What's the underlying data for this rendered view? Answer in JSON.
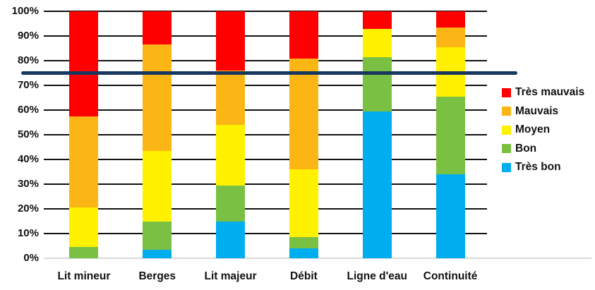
{
  "chart_data": {
    "type": "bar",
    "subtype": "stacked-100-percent-column",
    "title": "",
    "xlabel": "",
    "ylabel": "",
    "ylim": [
      0,
      100
    ],
    "grid": true,
    "y_ticks": [
      "0%",
      "10%",
      "20%",
      "30%",
      "40%",
      "50%",
      "60%",
      "70%",
      "80%",
      "90%",
      "100%"
    ],
    "categories": [
      "Lit mineur",
      "Berges",
      "Lit majeur",
      "Débit",
      "Ligne d'eau",
      "Continuité"
    ],
    "series": [
      {
        "name": "Très bon",
        "color": "#00AEEF",
        "values": [
          0,
          3.5,
          15,
          4,
          59.5,
          34
        ]
      },
      {
        "name": "Bon",
        "color": "#7AC143",
        "values": [
          4.5,
          11.5,
          14.5,
          4.5,
          22,
          31.5
        ]
      },
      {
        "name": "Moyen",
        "color": "#FFF100",
        "values": [
          16,
          28.5,
          24.5,
          27.5,
          11.5,
          20
        ]
      },
      {
        "name": "Mauvais",
        "color": "#FBB615",
        "values": [
          37,
          43,
          22,
          45,
          0,
          8
        ]
      },
      {
        "name": "Très mauvais",
        "color": "#FE0000",
        "values": [
          42.5,
          13.5,
          24,
          19,
          7,
          6.5
        ]
      }
    ],
    "reference_line": {
      "value": 75,
      "color": "#17375E"
    },
    "legend": {
      "position": "right",
      "items": [
        {
          "label": "Très mauvais",
          "color": "#FE0000"
        },
        {
          "label": "Mauvais",
          "color": "#FBB615"
        },
        {
          "label": "Moyen",
          "color": "#FFF100"
        },
        {
          "label": "Bon",
          "color": "#7AC143"
        },
        {
          "label": "Très bon",
          "color": "#00AEEF"
        }
      ]
    }
  }
}
